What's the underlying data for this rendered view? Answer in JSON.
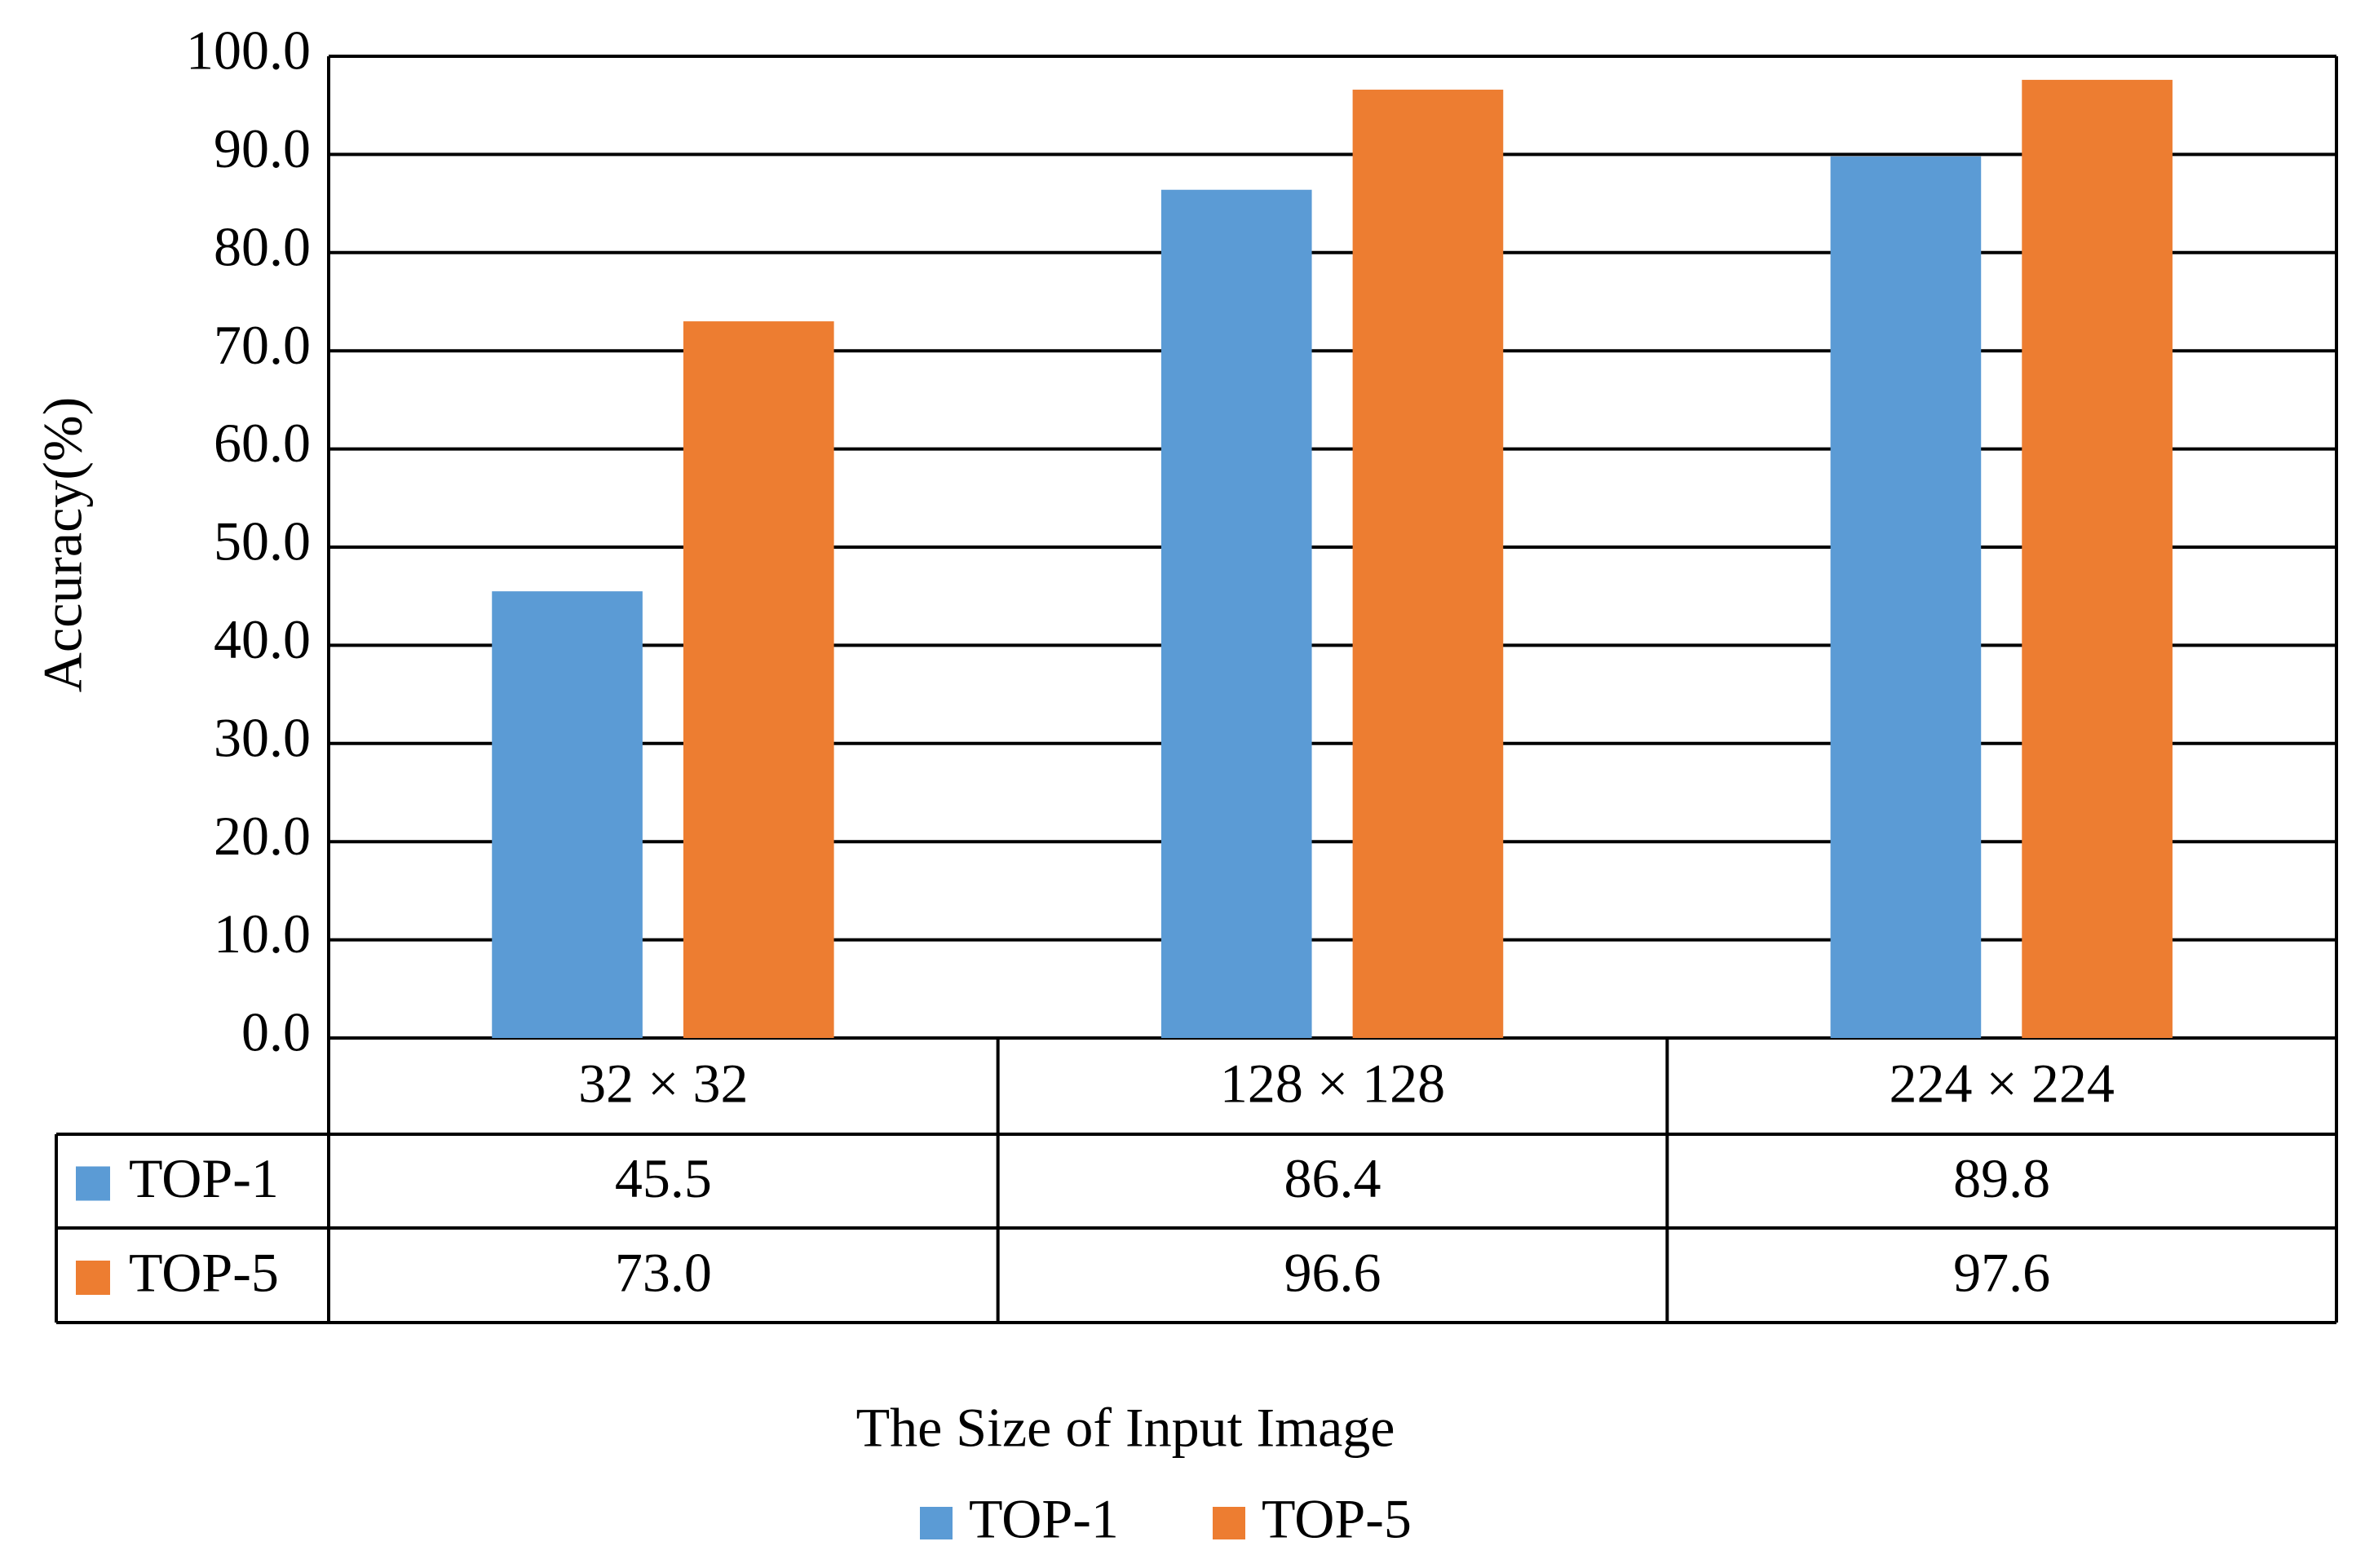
{
  "chart_data": {
    "type": "bar",
    "categories": [
      "32 × 32",
      "128 × 128",
      "224 × 224"
    ],
    "series": [
      {
        "name": "TOP-1",
        "color": "#5b9bd5",
        "values": [
          45.5,
          86.4,
          89.8
        ],
        "value_labels": [
          "45.5",
          "86.4",
          "89.8"
        ]
      },
      {
        "name": "TOP-5",
        "color": "#ed7d31",
        "values": [
          73.0,
          96.6,
          97.6
        ],
        "value_labels": [
          "73.0",
          "96.6",
          "97.6"
        ]
      }
    ],
    "y_label": "Accuracy(%)",
    "x_label": "The Size of Input Image",
    "ylim": [
      0,
      100
    ],
    "yticks": [
      {
        "value": 0,
        "label": "0.0"
      },
      {
        "value": 10,
        "label": "10.0"
      },
      {
        "value": 20,
        "label": "20.0"
      },
      {
        "value": 30,
        "label": "30.0"
      },
      {
        "value": 40,
        "label": "40.0"
      },
      {
        "value": 50,
        "label": "50.0"
      },
      {
        "value": 60,
        "label": "60.0"
      },
      {
        "value": 70,
        "label": "70.0"
      },
      {
        "value": 80,
        "label": "80.0"
      },
      {
        "value": 90,
        "label": "90.0"
      },
      {
        "value": 100,
        "label": "100.0"
      }
    ],
    "grid": true,
    "legend": "bottom"
  }
}
